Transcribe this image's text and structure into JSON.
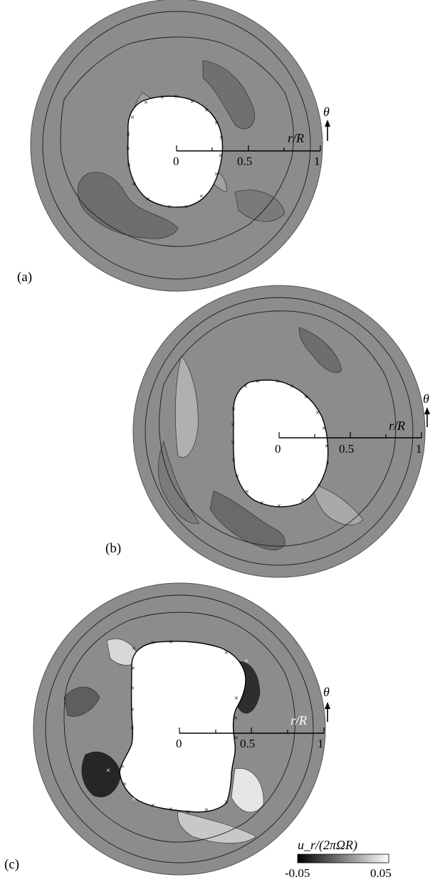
{
  "panels": [
    {
      "id": "a",
      "label": "(a)",
      "axis_label": "r/R",
      "angle_label": "θ",
      "ticks": [
        "0",
        "0.5",
        "1"
      ],
      "core_marker_color": "#000000"
    },
    {
      "id": "b",
      "label": "(b)",
      "axis_label": "r/R",
      "angle_label": "θ",
      "ticks": [
        "0",
        "0.5",
        "1"
      ],
      "core_marker_color": "#000000"
    },
    {
      "id": "c",
      "label": "(c)",
      "axis_label": "r/R",
      "angle_label": "θ",
      "ticks": [
        "0",
        "0.5",
        "1"
      ],
      "core_marker_color": "#000000",
      "highlight_marker_color": "#ffffff"
    }
  ],
  "colorbar": {
    "label": "u_r/(2πΩR)",
    "min_label": "-0.05",
    "max_label": "0.05",
    "min_color": "#000000",
    "max_color": "#ffffff"
  }
}
